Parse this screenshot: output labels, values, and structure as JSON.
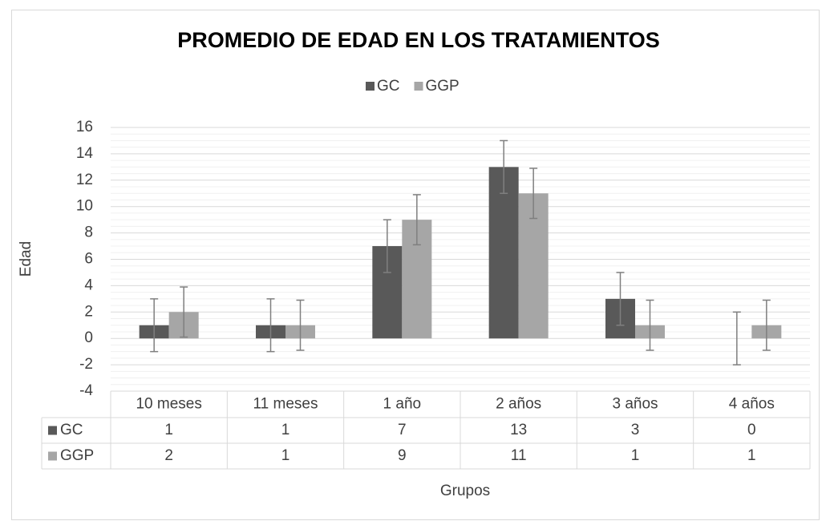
{
  "chart_data": {
    "type": "bar",
    "title": "PROMEDIO DE EDAD EN LOS TRATAMIENTOS",
    "x_label": "Grupos",
    "y_label": "Edad",
    "categories": [
      "10 meses",
      "11 meses",
      "1 año",
      "2 años",
      "3 años",
      "4 años"
    ],
    "series": [
      {
        "name": "GC",
        "color": "#595959",
        "values": [
          1,
          1,
          7,
          13,
          3,
          0
        ],
        "errors": [
          2,
          2,
          2,
          2,
          2,
          2
        ]
      },
      {
        "name": "GGP",
        "color": "#a6a6a6",
        "values": [
          2,
          1,
          9,
          11,
          1,
          1
        ],
        "errors": [
          1.9,
          1.9,
          1.9,
          1.9,
          1.9,
          1.9
        ]
      }
    ],
    "ylim": [
      -4,
      16
    ],
    "yticks": [
      -4,
      -2,
      0,
      2,
      4,
      6,
      8,
      10,
      12,
      14,
      16
    ],
    "grid": true,
    "minor_grid": true,
    "legend": "top",
    "data_table": true
  }
}
